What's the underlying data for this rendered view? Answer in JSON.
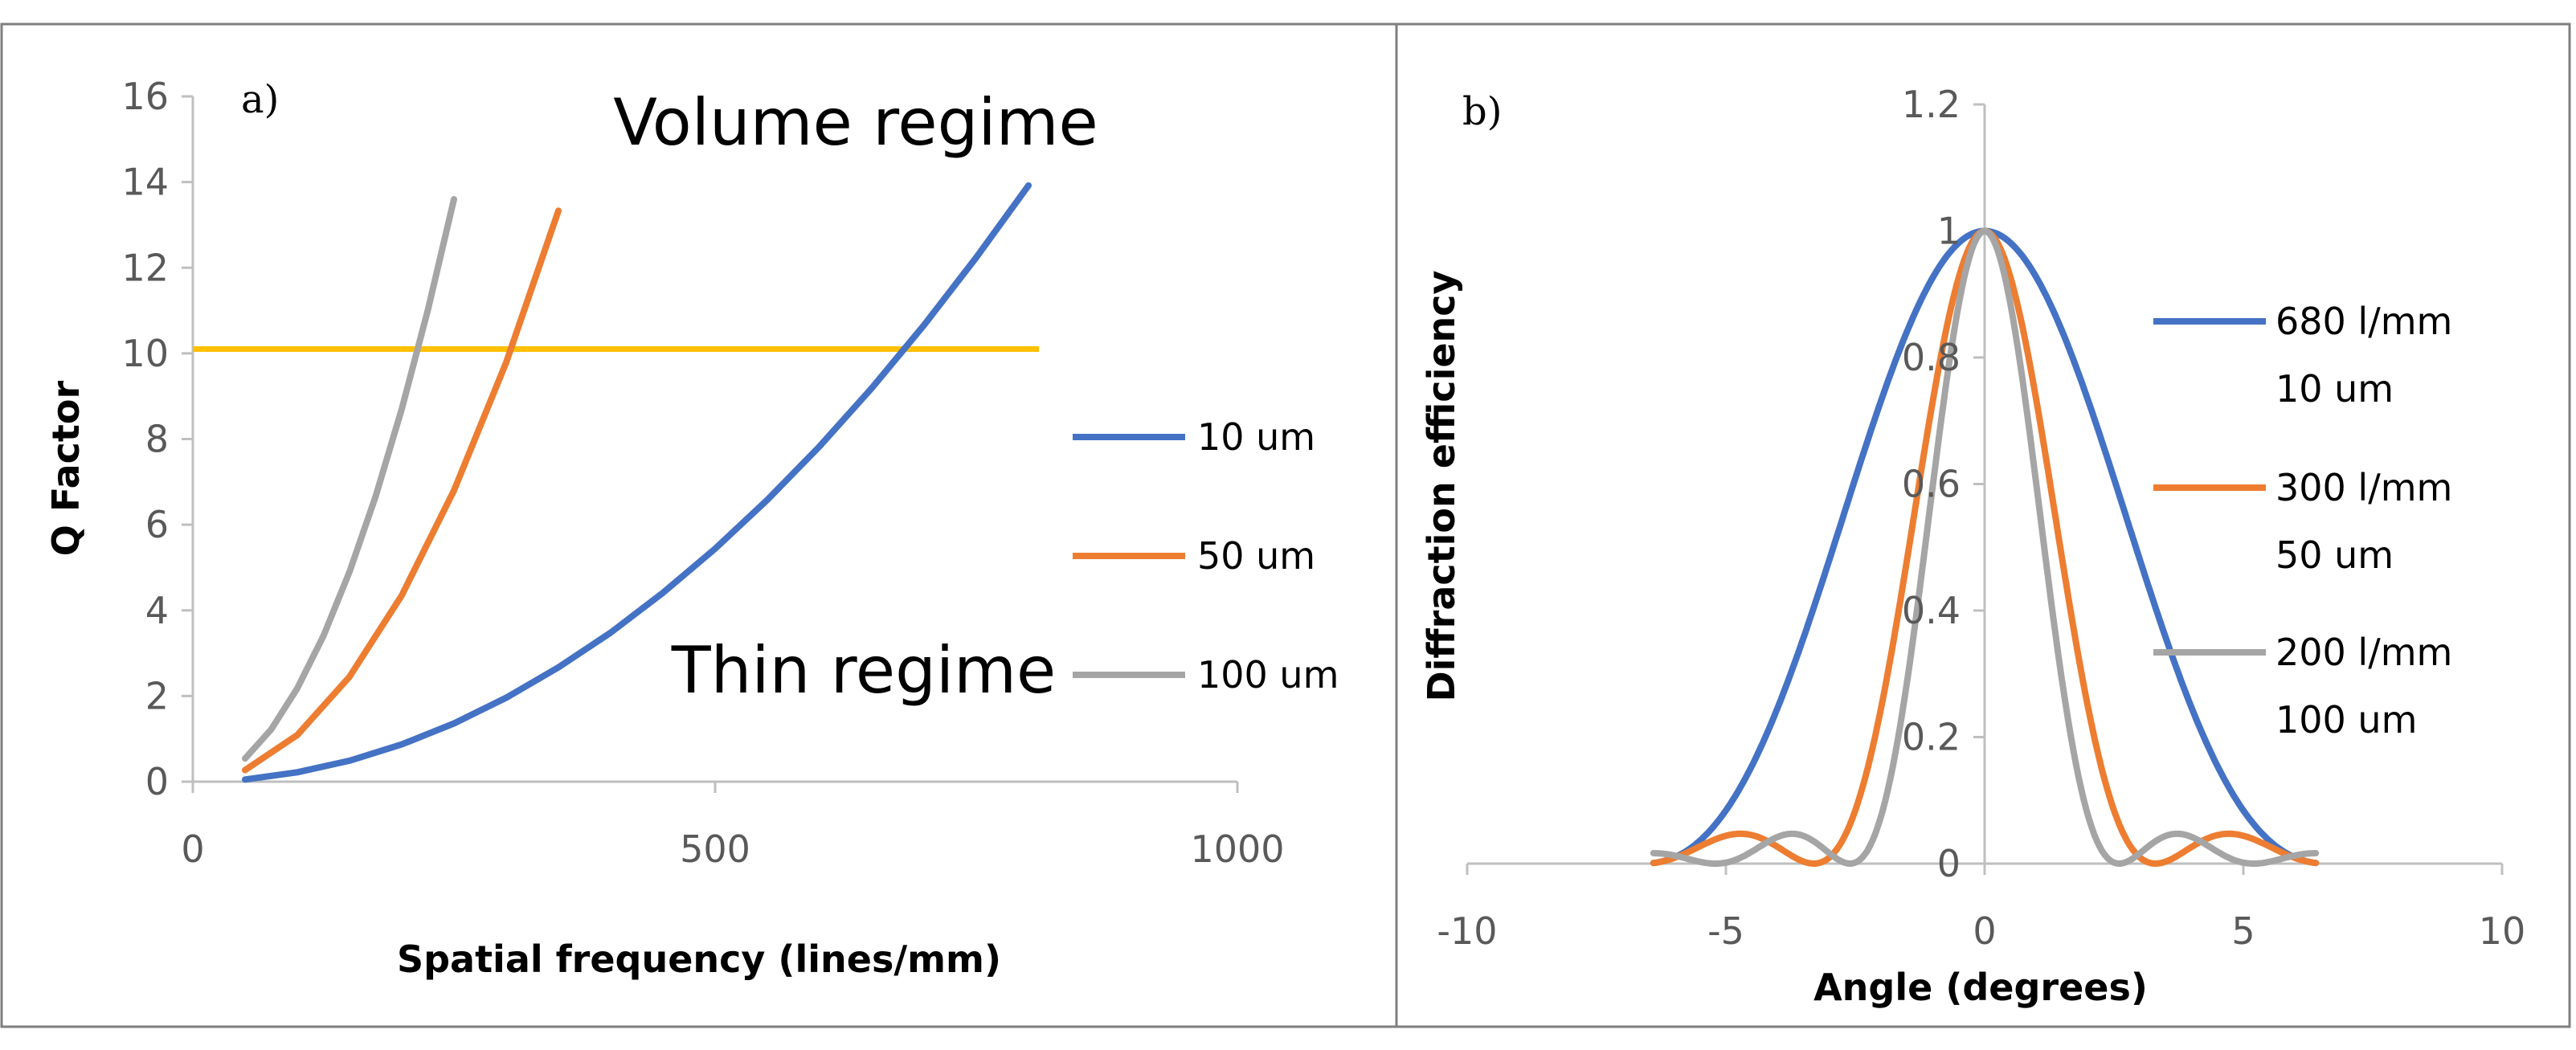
{
  "chart_data": [
    {
      "type": "line",
      "panel_label": "a)",
      "xlabel": "Spatial frequency (lines/mm)",
      "ylabel": "Q Factor",
      "xlim": [
        0,
        1000
      ],
      "ylim": [
        0,
        16
      ],
      "xticks": [
        0,
        500,
        1000
      ],
      "yticks": [
        0,
        2,
        4,
        6,
        8,
        10,
        12,
        14,
        16
      ],
      "annotations": [
        "Volume regime",
        "Thin regime"
      ],
      "legend_position": "right",
      "threshold": {
        "y": 10.1,
        "x": [
          0,
          810
        ],
        "color": "#FFC000"
      },
      "series": [
        {
          "name": "10 um",
          "color": "#4472C4",
          "x": [
            50,
            100,
            150,
            200,
            250,
            300,
            350,
            400,
            450,
            500,
            550,
            600,
            650,
            700,
            750,
            800
          ],
          "y": [
            0.05,
            0.22,
            0.49,
            0.87,
            1.36,
            1.96,
            2.67,
            3.48,
            4.41,
            5.44,
            6.58,
            7.83,
            9.19,
            10.66,
            12.24,
            13.92
          ]
        },
        {
          "name": "50 um",
          "color": "#ED7D31",
          "x": [
            50,
            100,
            150,
            200,
            250,
            300,
            350
          ],
          "y": [
            0.27,
            1.09,
            2.45,
            4.35,
            6.8,
            9.79,
            13.33
          ]
        },
        {
          "name": "100 um",
          "color": "#A5A5A5",
          "x": [
            50,
            75,
            100,
            125,
            150,
            175,
            200,
            225,
            250
          ],
          "y": [
            0.54,
            1.22,
            2.18,
            3.4,
            4.9,
            6.66,
            8.7,
            11.01,
            13.6
          ]
        }
      ]
    },
    {
      "type": "line",
      "panel_label": "b)",
      "xlabel": "Angle (degrees)",
      "ylabel": "Diffraction efficiency",
      "xlim": [
        -10,
        10
      ],
      "ylim": [
        0,
        1.2
      ],
      "xticks": [
        -10,
        -5,
        0,
        5,
        10
      ],
      "yticks": [
        0,
        0.2,
        0.4,
        0.6,
        0.8,
        1,
        1.2
      ],
      "legend_position": "right",
      "series": [
        {
          "name": "680 l/mm",
          "name2": "10 um",
          "color": "#4472C4",
          "zero_angle": 6.6,
          "x_range": [
            -6.4,
            6.4
          ]
        },
        {
          "name": "300 l/mm",
          "name2": "50 um",
          "color": "#ED7D31",
          "zero_angle": 3.3,
          "x_range": [
            -6.4,
            6.4
          ]
        },
        {
          "name": "200 l/mm",
          "name2": "100 um",
          "color": "#A5A5A5",
          "zero_angle": 2.6,
          "x_range": [
            -6.4,
            6.4
          ]
        }
      ]
    }
  ]
}
